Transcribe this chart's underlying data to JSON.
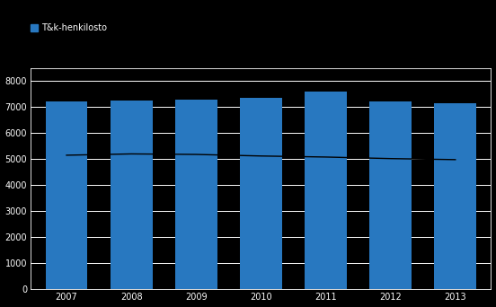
{
  "years": [
    2007,
    2008,
    2009,
    2010,
    2011,
    2012,
    2013
  ],
  "bar_values": [
    7200,
    7250,
    7300,
    7350,
    7600,
    7200,
    7150
  ],
  "line_values": [
    5150,
    5200,
    5180,
    5120,
    5080,
    5020,
    4980
  ],
  "bar_color": "#2878c0",
  "line_color": "#000000",
  "background_color": "#000000",
  "plot_bg_color": "#000000",
  "grid_color": "#ffffff",
  "ylim": [
    0,
    8500
  ],
  "yticks": [
    0,
    1000,
    2000,
    3000,
    4000,
    5000,
    6000,
    7000,
    8000
  ],
  "legend_label": "T&k-henkilosto",
  "bar_width": 0.65,
  "legend_color": "#2878c0",
  "tick_color": "#ffffff",
  "spine_color": "#ffffff"
}
